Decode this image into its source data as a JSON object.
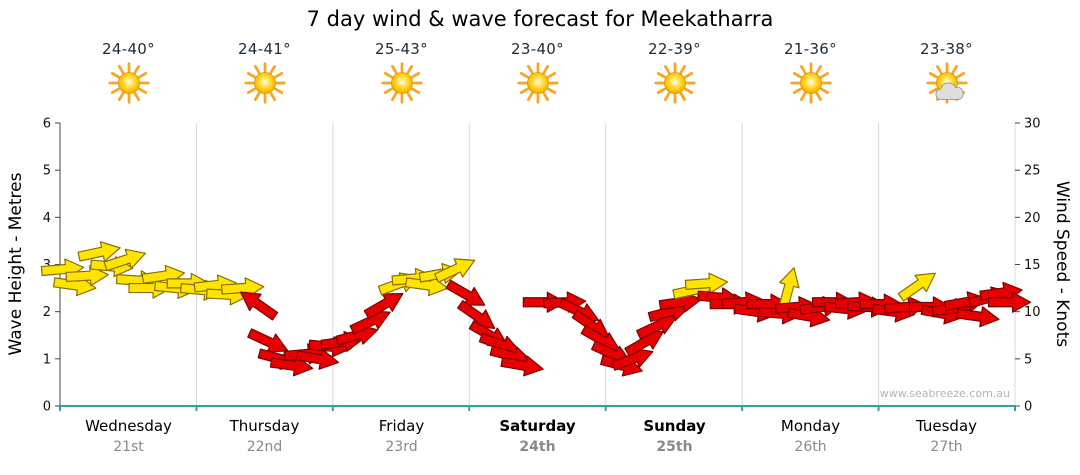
{
  "title": "7 day wind & wave forecast for Meekatharra",
  "watermark": "www.seabreeze.com.au",
  "axes": {
    "left_label": "Wave Height - Metres",
    "right_label": "Wind Speed - Knots",
    "left_ticks": [
      0,
      1,
      2,
      3,
      4,
      5,
      6
    ],
    "right_ticks": [
      0,
      5,
      10,
      15,
      20,
      25,
      30
    ]
  },
  "colors": {
    "arrow_yellow": "#FFE400",
    "arrow_red": "#E60000",
    "arrow_yellow_outline": "#8a6d00",
    "arrow_red_outline": "#7d0000",
    "bottom_axis": "#2aa5a0",
    "gridline": "#d9d9d9",
    "axis_line": "#444444"
  },
  "days": [
    {
      "name": "Wednesday",
      "date": "21st",
      "temp": "24-40°",
      "icon": "sunny",
      "weekend": false
    },
    {
      "name": "Thursday",
      "date": "22nd",
      "temp": "24-41°",
      "icon": "sunny",
      "weekend": false
    },
    {
      "name": "Friday",
      "date": "23rd",
      "temp": "25-43°",
      "icon": "sunny",
      "weekend": false
    },
    {
      "name": "Saturday",
      "date": "24th",
      "temp": "23-40°",
      "icon": "sunny",
      "weekend": true
    },
    {
      "name": "Sunday",
      "date": "25th",
      "temp": "22-39°",
      "icon": "sunny",
      "weekend": true
    },
    {
      "name": "Monday",
      "date": "26th",
      "temp": "21-36°",
      "icon": "sunny",
      "weekend": false
    },
    {
      "name": "Tuesday",
      "date": "27th",
      "temp": "23-38°",
      "icon": "partly-cloudy",
      "weekend": false
    }
  ],
  "chart_data": {
    "type": "wind-arrows",
    "title": "7 day wind & wave forecast for Meekatharra",
    "x_categories": [
      "Wednesday 21st",
      "Thursday 22nd",
      "Friday 23rd",
      "Saturday 24th",
      "Sunday 25th",
      "Monday 26th",
      "Tuesday 27th"
    ],
    "left_axis": {
      "label": "Wave Height - Metres",
      "range": [
        0,
        6
      ]
    },
    "right_axis": {
      "label": "Wind Speed - Knots",
      "range": [
        0,
        30
      ]
    },
    "arrow_format": "[day_position_0_to_7, wind_speed_knots, direction_angle_deg_clockwise_from_east, color_y_or_r]",
    "arrows": [
      [
        0.02,
        14.5,
        -5,
        "y"
      ],
      [
        0.11,
        12.8,
        8,
        "y"
      ],
      [
        0.2,
        13.8,
        -3,
        "y"
      ],
      [
        0.29,
        16.3,
        -12,
        "y"
      ],
      [
        0.38,
        14.8,
        5,
        "y"
      ],
      [
        0.48,
        15.5,
        -18,
        "y"
      ],
      [
        0.57,
        13.3,
        4,
        "y"
      ],
      [
        0.66,
        12.5,
        0,
        "y"
      ],
      [
        0.76,
        13.8,
        -8,
        "y"
      ],
      [
        0.85,
        12.5,
        6,
        "y"
      ],
      [
        0.94,
        13.0,
        0,
        "y"
      ],
      [
        1.04,
        12.3,
        5,
        "y"
      ],
      [
        1.14,
        12.8,
        -6,
        "y"
      ],
      [
        1.23,
        11.8,
        3,
        "y"
      ],
      [
        1.34,
        12.5,
        -4,
        "y"
      ],
      [
        1.45,
        10.8,
        215,
        "r"
      ],
      [
        1.53,
        6.8,
        25,
        "r"
      ],
      [
        1.61,
        5.0,
        15,
        "r"
      ],
      [
        1.7,
        4.3,
        8,
        "r"
      ],
      [
        1.8,
        5.5,
        -5,
        "r"
      ],
      [
        1.89,
        5.0,
        10,
        "r"
      ],
      [
        1.98,
        6.3,
        5,
        "r"
      ],
      [
        2.07,
        6.8,
        -8,
        "r"
      ],
      [
        2.18,
        7.5,
        -15,
        "r"
      ],
      [
        2.28,
        9.0,
        -25,
        "r"
      ],
      [
        2.38,
        10.8,
        -30,
        "r"
      ],
      [
        2.49,
        13.0,
        -20,
        "y"
      ],
      [
        2.59,
        13.5,
        -5,
        "y"
      ],
      [
        2.69,
        12.8,
        8,
        "y"
      ],
      [
        2.79,
        14.0,
        -10,
        "y"
      ],
      [
        2.9,
        14.5,
        -25,
        "y"
      ],
      [
        2.98,
        11.8,
        30,
        "r"
      ],
      [
        3.06,
        9.5,
        35,
        "r"
      ],
      [
        3.15,
        7.5,
        30,
        "r"
      ],
      [
        3.23,
        6.5,
        20,
        "r"
      ],
      [
        3.31,
        5.3,
        15,
        "r"
      ],
      [
        3.39,
        4.3,
        10,
        "r"
      ],
      [
        3.55,
        11.0,
        0,
        "r"
      ],
      [
        3.7,
        11.0,
        -3,
        "r"
      ],
      [
        3.81,
        10.0,
        25,
        "r"
      ],
      [
        3.9,
        8.5,
        35,
        "r"
      ],
      [
        3.97,
        7.0,
        30,
        "r"
      ],
      [
        4.05,
        5.5,
        25,
        "r"
      ],
      [
        4.12,
        4.3,
        15,
        "r"
      ],
      [
        4.2,
        5.0,
        -20,
        "r"
      ],
      [
        4.29,
        6.8,
        -30,
        "r"
      ],
      [
        4.38,
        8.5,
        -25,
        "r"
      ],
      [
        4.47,
        10.0,
        -15,
        "r"
      ],
      [
        4.55,
        11.0,
        -8,
        "r"
      ],
      [
        4.65,
        12.3,
        -12,
        "y"
      ],
      [
        4.74,
        13.0,
        -4,
        "y"
      ],
      [
        4.83,
        11.5,
        5,
        "r"
      ],
      [
        4.92,
        10.8,
        0,
        "r"
      ],
      [
        5.01,
        11.0,
        -5,
        "r"
      ],
      [
        5.1,
        10.0,
        8,
        "r"
      ],
      [
        5.19,
        10.8,
        0,
        "r"
      ],
      [
        5.28,
        9.8,
        5,
        "r"
      ],
      [
        5.34,
        12.5,
        -75,
        "y"
      ],
      [
        5.4,
        10.5,
        -5,
        "r"
      ],
      [
        5.49,
        9.5,
        10,
        "r"
      ],
      [
        5.58,
        10.5,
        -8,
        "r"
      ],
      [
        5.67,
        11.0,
        0,
        "r"
      ],
      [
        5.76,
        10.3,
        6,
        "r"
      ],
      [
        5.84,
        11.0,
        -4,
        "r"
      ],
      [
        5.93,
        10.5,
        3,
        "r"
      ],
      [
        6.02,
        10.8,
        0,
        "r"
      ],
      [
        6.11,
        10.0,
        8,
        "r"
      ],
      [
        6.2,
        10.5,
        -5,
        "r"
      ],
      [
        6.29,
        12.8,
        -35,
        "y"
      ],
      [
        6.38,
        10.5,
        0,
        "r"
      ],
      [
        6.47,
        9.8,
        10,
        "r"
      ],
      [
        6.55,
        10.3,
        -5,
        "r"
      ],
      [
        6.64,
        11.0,
        -10,
        "r"
      ],
      [
        6.73,
        9.5,
        8,
        "r"
      ],
      [
        6.82,
        11.5,
        -15,
        "r"
      ],
      [
        6.9,
        12.0,
        -8,
        "r"
      ],
      [
        6.96,
        11.0,
        0,
        "r"
      ]
    ]
  }
}
